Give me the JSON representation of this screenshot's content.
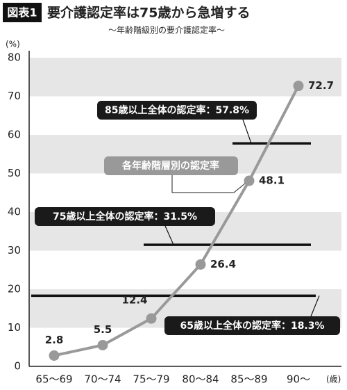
{
  "chart_data": {
    "type": "line",
    "figure_label": "図表1",
    "title": "要介護認定率は75歳から急増する",
    "subtitle": "〜年齢階級別の要介護認定率〜",
    "y_unit": "(%)",
    "x_unit": "(歳)",
    "categories": [
      "65〜69",
      "70〜74",
      "75〜79",
      "80〜84",
      "85〜89",
      "90〜"
    ],
    "series": [
      {
        "name": "各年齢階層別の認定率",
        "color": "#999999",
        "values": [
          2.8,
          5.5,
          12.4,
          26.4,
          48.1,
          72.7
        ]
      }
    ],
    "reference_lines": [
      {
        "label": "85歳以上全体の認定率：57.8%",
        "value": 57.8
      },
      {
        "label": "75歳以上全体の認定率：31.5%",
        "value": 31.5
      },
      {
        "label": "65歳以上全体の認定率：18.3%",
        "value": 18.3
      }
    ],
    "ylim": [
      0,
      80
    ],
    "yticks": [
      0,
      10,
      20,
      30,
      40,
      50,
      60,
      70,
      80
    ],
    "bands": true
  }
}
